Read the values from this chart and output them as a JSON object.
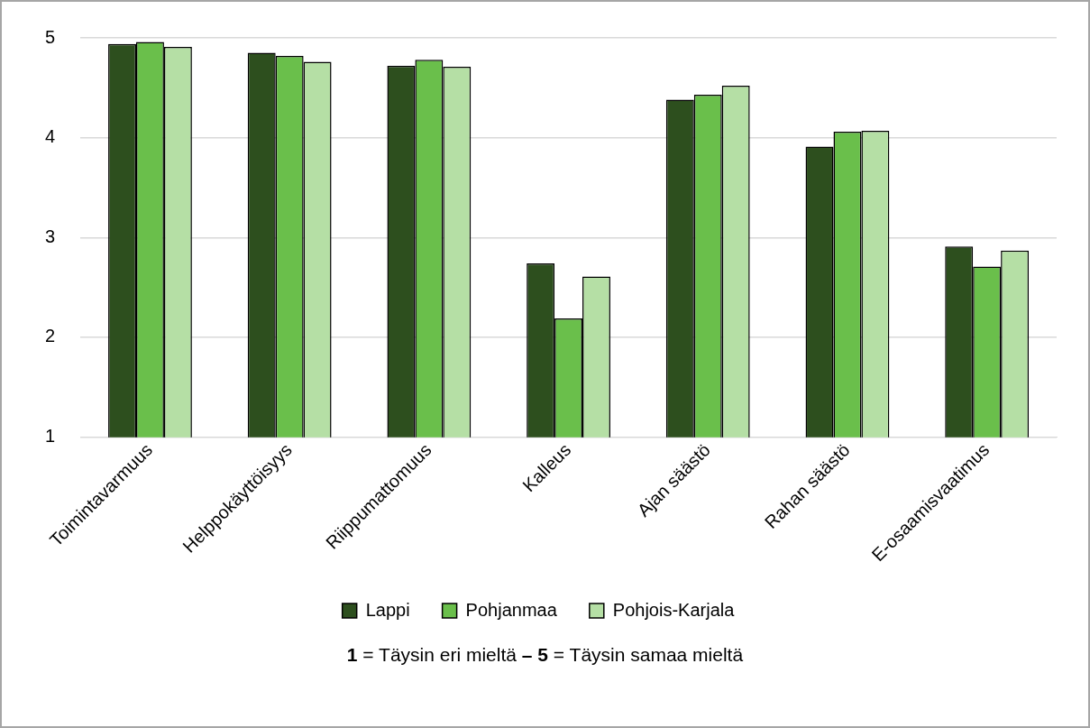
{
  "chart_data": {
    "type": "bar",
    "categories": [
      "Toimintavarmuus",
      "Helppokäyttöisyys",
      "Riippumattomuus",
      "Kalleus",
      "Ajan säästö",
      "Rahan säästö",
      "E-osaamisvaatimus"
    ],
    "series": [
      {
        "name": "Lappi",
        "color": "#2d4f1e",
        "values": [
          4.94,
          4.85,
          4.72,
          2.74,
          4.38,
          3.91,
          2.91
        ]
      },
      {
        "name": "Pohjanmaa",
        "color": "#6abf4b",
        "values": [
          4.96,
          4.82,
          4.78,
          2.19,
          4.43,
          4.06,
          2.71
        ]
      },
      {
        "name": "Pohjois-Karjala",
        "color": "#b5dfa5",
        "values": [
          4.91,
          4.76,
          4.71,
          2.61,
          4.52,
          4.07,
          2.87
        ]
      }
    ],
    "ylim": [
      1,
      5
    ],
    "yticks": [
      1,
      2,
      3,
      4,
      5
    ],
    "grid": "y",
    "legend": "bottom",
    "annotations": [
      "1 = Täysin eri mieltä – 5 = Täysin samaa mieltä"
    ]
  }
}
